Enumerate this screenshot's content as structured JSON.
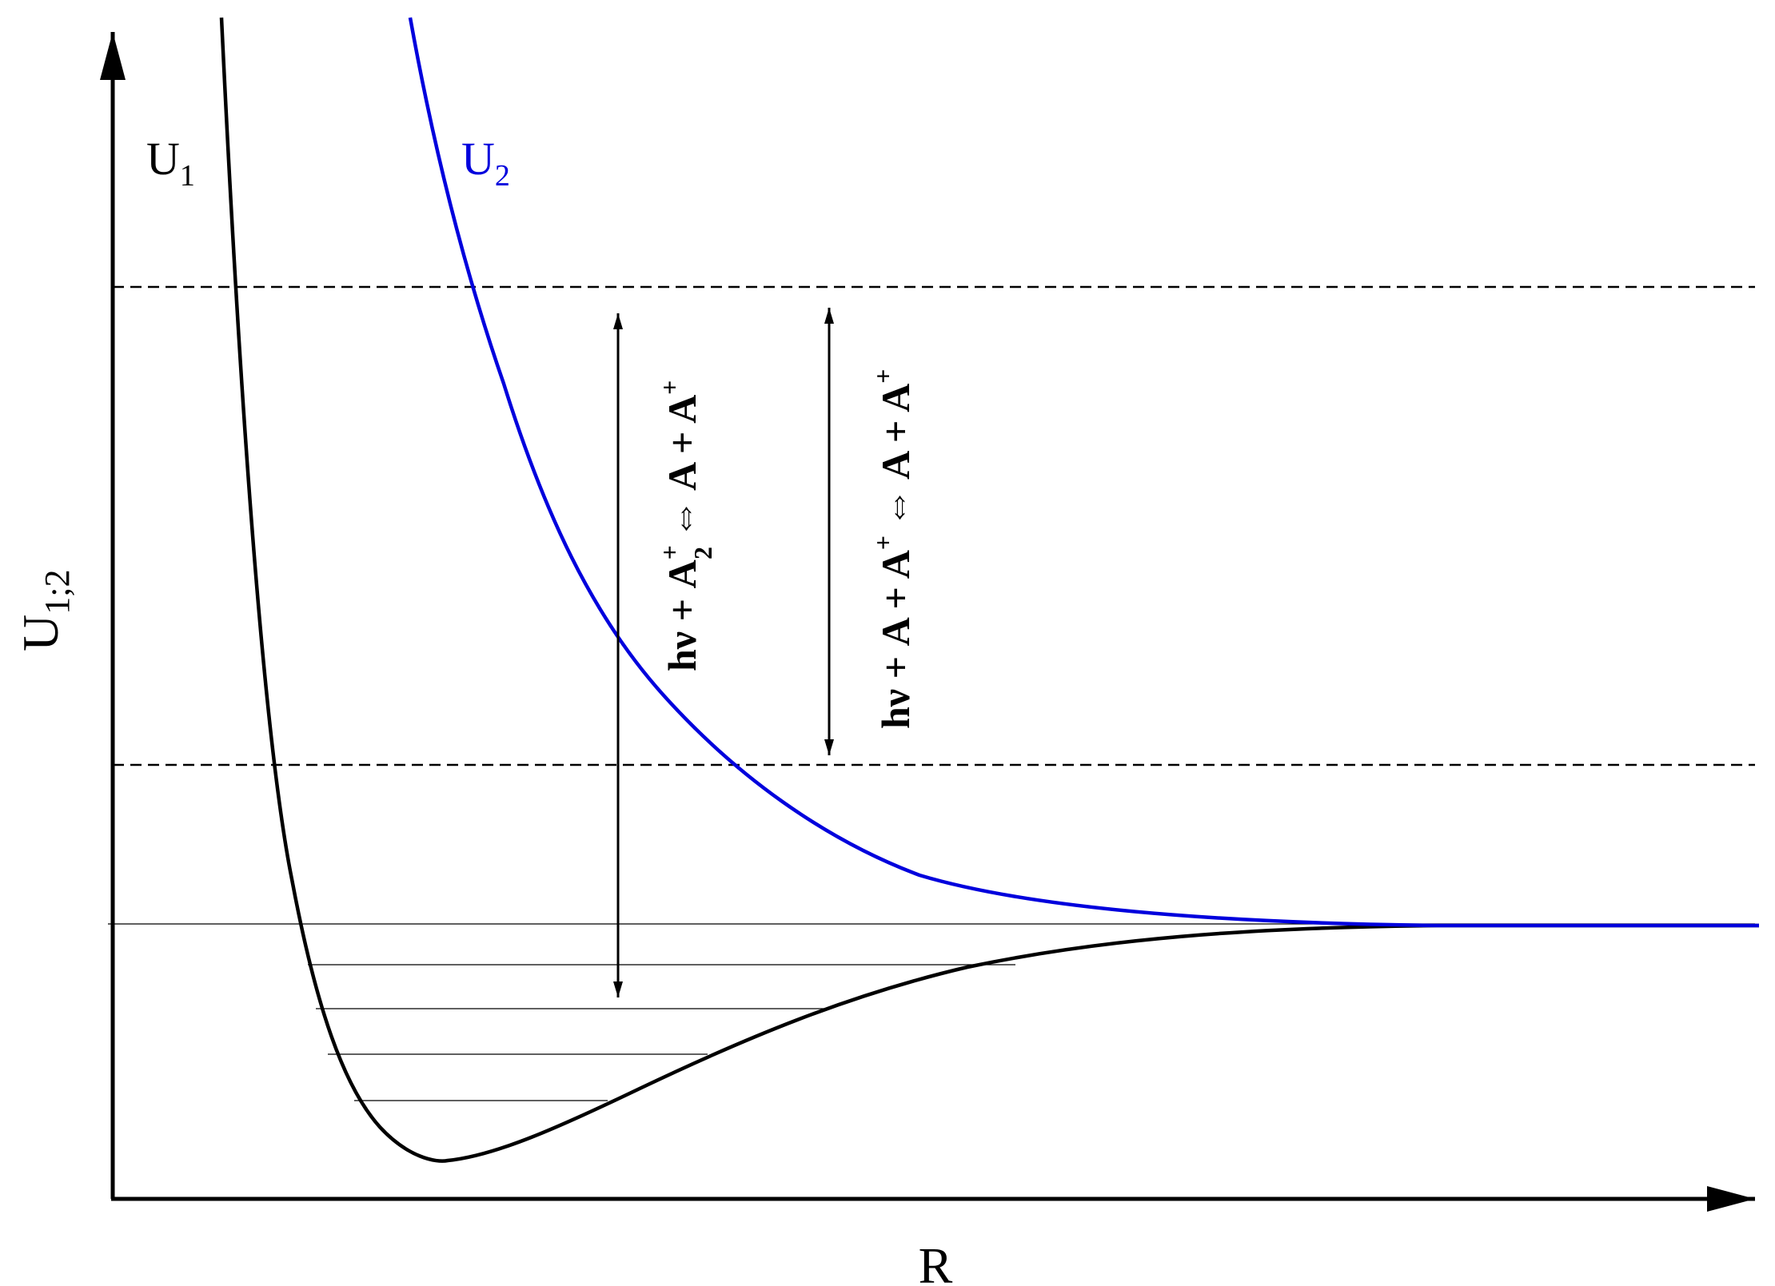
{
  "axes": {
    "y_label_main": "U",
    "y_label_sub": "1;2",
    "x_label": "R"
  },
  "curves": {
    "u1": {
      "label_main": "U",
      "label_sub": "1",
      "color": "#000000"
    },
    "u2": {
      "label_main": "U",
      "label_sub": "2",
      "color": "#0000dd"
    }
  },
  "transitions": {
    "left": {
      "prefix": "hν + A",
      "ion_sup": "+",
      "ion_sub": "2",
      "equiv": "⇔",
      "products": "A + A",
      "products_sup": "+"
    },
    "right": {
      "prefix": "hν + A + A",
      "prefix_sup": "+",
      "equiv": "⇔",
      "products": "A + A",
      "products_sup": "+"
    }
  }
}
